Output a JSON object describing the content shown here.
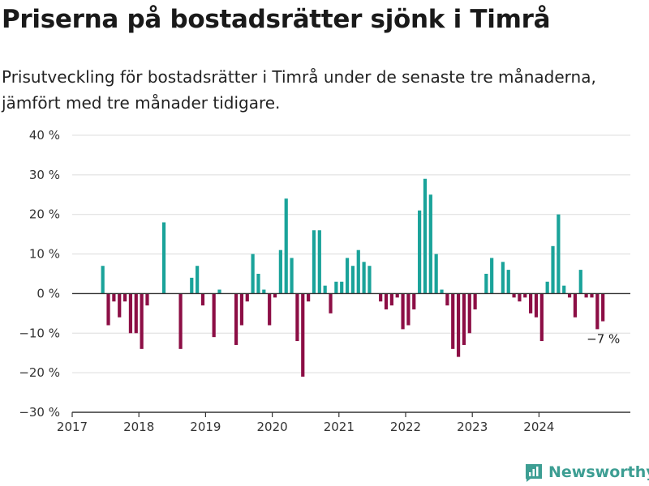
{
  "header": {
    "title": "Priserna på bostadsrätter sjönk i Timrå",
    "subtitle": "Prisutveckling för bostadsrätter i Timrå under de senaste tre månaderna, jämfört med tre månader tidigare."
  },
  "brand": {
    "name": "Newsworthy",
    "color": "#3d9e93"
  },
  "chart_data": {
    "type": "bar",
    "y_unit": "%",
    "ylim": [
      -30,
      40
    ],
    "y_ticks": [
      40,
      30,
      20,
      10,
      0,
      -10,
      -20,
      -30
    ],
    "y_tick_labels": [
      "40 %",
      "30 %",
      "20 %",
      "10 %",
      "0 %",
      "−10 %",
      "−20 %",
      "−30 %"
    ],
    "x_tick_labels": [
      "2017",
      "2018",
      "2019",
      "2020",
      "2021",
      "2022",
      "2023",
      "2024"
    ],
    "grid": true,
    "colors": {
      "positive": "#1aa39a",
      "negative": "#8c0e45"
    },
    "first_month": "2017-06",
    "values": [
      7,
      -8,
      -2,
      -6,
      -2,
      -10,
      -10,
      -14,
      -3,
      0,
      0,
      18,
      0,
      0,
      -14,
      0,
      4,
      7,
      -3,
      0,
      -11,
      1,
      0,
      0,
      -13,
      -8,
      -2,
      10,
      5,
      1,
      -8,
      -1,
      11,
      24,
      9,
      -12,
      -21,
      -2,
      16,
      16,
      2,
      -5,
      3,
      3,
      9,
      7,
      11,
      8,
      7,
      0,
      -2,
      -4,
      -3,
      -1,
      -9,
      -8,
      -4,
      21,
      29,
      25,
      10,
      1,
      -3,
      -14,
      -16,
      -13,
      -10,
      -4,
      0,
      5,
      9,
      0,
      8,
      6,
      -1,
      -2,
      -1,
      -5,
      -6,
      -12,
      3,
      12,
      20,
      2,
      -1,
      -6,
      6,
      -1,
      -1,
      -9,
      -7
    ],
    "annotation": {
      "label": "−7 %",
      "month": "2024-12"
    }
  }
}
